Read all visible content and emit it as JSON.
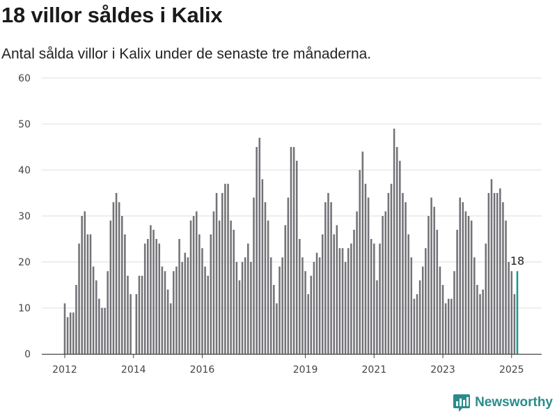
{
  "header": {
    "title": "18 villor såldes i Kalix",
    "subtitle": "Antal sålda villor i Kalix under de senaste tre månaderna."
  },
  "brand": {
    "name": "Newsworthy",
    "icon": "bar-chart-logo-icon"
  },
  "colors": {
    "bar": "#737277",
    "highlight": "#1a9a91",
    "grid": "#dddddd",
    "axis": "#444444"
  },
  "chart_data": {
    "type": "bar",
    "title": "18 villor såldes i Kalix",
    "subtitle": "Antal sålda villor i Kalix under de senaste tre månaderna.",
    "xlabel": "",
    "ylabel": "",
    "ylim": [
      0,
      60
    ],
    "yticks": [
      "0",
      "10",
      "20",
      "30",
      "40",
      "50",
      "60"
    ],
    "xticks": [
      "2012",
      "2014",
      "2016",
      "2019",
      "2021",
      "2023",
      "2025"
    ],
    "x_start": "2012-01",
    "x_end": "2025-02",
    "frequency": "monthly",
    "grid": true,
    "highlight_last": true,
    "last_value_label": "18",
    "values": [
      11,
      8,
      9,
      9,
      15,
      24,
      30,
      31,
      26,
      26,
      19,
      16,
      12,
      10,
      10,
      18,
      29,
      33,
      35,
      33,
      30,
      26,
      17,
      13,
      0,
      13,
      17,
      17,
      24,
      25,
      28,
      27,
      25,
      24,
      19,
      18,
      14,
      11,
      18,
      19,
      25,
      20,
      22,
      21,
      29,
      30,
      31,
      26,
      23,
      19,
      17,
      26,
      31,
      35,
      29,
      35,
      37,
      37,
      29,
      27,
      20,
      16,
      20,
      21,
      24,
      20,
      34,
      45,
      47,
      38,
      33,
      29,
      21,
      15,
      11,
      19,
      21,
      28,
      34,
      45,
      45,
      42,
      25,
      21,
      18,
      13,
      17,
      20,
      22,
      21,
      26,
      33,
      35,
      33,
      26,
      28,
      23,
      23,
      20,
      23,
      24,
      27,
      31,
      40,
      44,
      37,
      34,
      25,
      24,
      16,
      24,
      30,
      31,
      35,
      37,
      49,
      45,
      42,
      35,
      33,
      26,
      21,
      12,
      13,
      16,
      19,
      23,
      30,
      34,
      32,
      27,
      19,
      15,
      11,
      12,
      12,
      18,
      27,
      34,
      33,
      31,
      30,
      29,
      21,
      15,
      13,
      14,
      24,
      35,
      38,
      35,
      35,
      36,
      33,
      29,
      20,
      18,
      13,
      18
    ]
  }
}
